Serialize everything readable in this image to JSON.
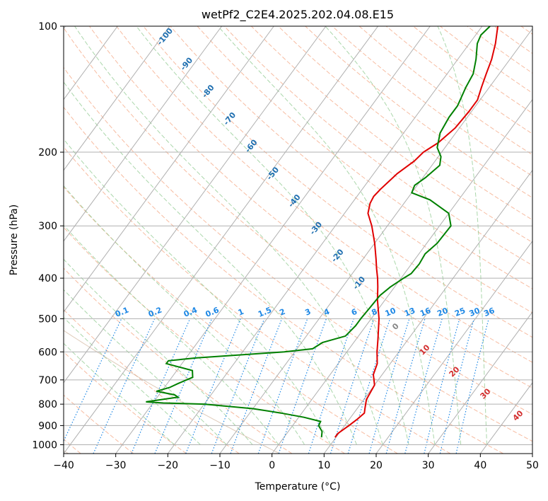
{
  "chart_data": {
    "type": "line",
    "subtype": "skew-T log-P diagram",
    "title": "wetPf2_C2E4.2025.202.04.08.E15",
    "xlabel": "Temperature (°C)",
    "ylabel": "Pressure (hPa)",
    "xlim": [
      -40,
      50
    ],
    "ylim": [
      1050,
      100
    ],
    "y_scale": "log",
    "x_ticks": [
      -40,
      -30,
      -20,
      -10,
      0,
      10,
      20,
      30,
      40,
      50
    ],
    "x_tick_labels": [
      "−40",
      "−30",
      "−20",
      "−10",
      "0",
      "10",
      "20",
      "30",
      "40",
      "50"
    ],
    "y_ticks": [
      1000,
      900,
      800,
      700,
      600,
      500,
      400,
      300,
      200,
      100
    ],
    "y_tick_labels": [
      "1000",
      "900",
      "800",
      "700",
      "600",
      "500",
      "400",
      "300",
      "200",
      "100"
    ],
    "grid": true,
    "series": [
      {
        "color": "#e00000",
        "role": "temperature",
        "points": [
          [
            960,
            9.8
          ],
          [
            940,
            9.8
          ],
          [
            900,
            10.8
          ],
          [
            870,
            11.5
          ],
          [
            840,
            12
          ],
          [
            820,
            11.5
          ],
          [
            780,
            10.5
          ],
          [
            720,
            10
          ],
          [
            680,
            8.3
          ],
          [
            640,
            7.5
          ],
          [
            600,
            5.8
          ],
          [
            560,
            4.2
          ],
          [
            500,
            1.5
          ],
          [
            450,
            -1.5
          ],
          [
            420,
            -3.2
          ],
          [
            400,
            -4.5
          ],
          [
            380,
            -6
          ],
          [
            360,
            -7.5
          ],
          [
            330,
            -10
          ],
          [
            300,
            -13
          ],
          [
            280,
            -15.5
          ],
          [
            265,
            -16.5
          ],
          [
            255,
            -16.8
          ],
          [
            245,
            -16.5
          ],
          [
            235,
            -16
          ],
          [
            225,
            -15.5
          ],
          [
            210,
            -14
          ],
          [
            200,
            -13.5
          ],
          [
            190,
            -12
          ],
          [
            175,
            -10.8
          ],
          [
            160,
            -10.5
          ],
          [
            150,
            -10.5
          ],
          [
            140,
            -11.5
          ],
          [
            130,
            -12.5
          ],
          [
            120,
            -13.5
          ],
          [
            110,
            -15
          ],
          [
            100,
            -17
          ]
        ]
      },
      {
        "color": "#008000",
        "role": "dewpoint",
        "points": [
          [
            960,
            7.2
          ],
          [
            930,
            6.5
          ],
          [
            900,
            5
          ],
          [
            880,
            4.8
          ],
          [
            860,
            1
          ],
          [
            840,
            -4
          ],
          [
            820,
            -10
          ],
          [
            800,
            -20
          ],
          [
            795,
            -28
          ],
          [
            790,
            -31.5
          ],
          [
            770,
            -26
          ],
          [
            760,
            -27
          ],
          [
            745,
            -31
          ],
          [
            730,
            -29
          ],
          [
            715,
            -28
          ],
          [
            690,
            -26
          ],
          [
            665,
            -27
          ],
          [
            640,
            -33
          ],
          [
            630,
            -33
          ],
          [
            620,
            -28
          ],
          [
            600,
            -12
          ],
          [
            590,
            -7
          ],
          [
            570,
            -6
          ],
          [
            550,
            -2.5
          ],
          [
            520,
            -2
          ],
          [
            500,
            -2
          ],
          [
            470,
            -1.8
          ],
          [
            440,
            -1.6
          ],
          [
            420,
            -0.8
          ],
          [
            400,
            0.5
          ],
          [
            390,
            1.3
          ],
          [
            370,
            1.5
          ],
          [
            350,
            1.2
          ],
          [
            330,
            2
          ],
          [
            300,
            2.2
          ],
          [
            280,
            0
          ],
          [
            260,
            -5.5
          ],
          [
            250,
            -10
          ],
          [
            240,
            -10.5
          ],
          [
            230,
            -9.5
          ],
          [
            215,
            -8.5
          ],
          [
            205,
            -9.5
          ],
          [
            195,
            -11.5
          ],
          [
            180,
            -13
          ],
          [
            165,
            -13.5
          ],
          [
            155,
            -13.5
          ],
          [
            140,
            -14.5
          ],
          [
            130,
            -15
          ],
          [
            120,
            -16.5
          ],
          [
            110,
            -18.5
          ],
          [
            105,
            -19
          ],
          [
            100,
            -18.5
          ]
        ]
      }
    ],
    "dry_adiabat_labels": [
      "0",
      "10",
      "20",
      "30",
      "40"
    ],
    "moist_adiabat_labels": [
      "-100",
      "-90",
      "-80",
      "-70",
      "-60",
      "-50",
      "-40",
      "-30",
      "-20",
      "-10"
    ],
    "mixing_ratio_labels": [
      "0.1",
      "0.2",
      "0.4",
      "0.6",
      "1",
      "1.5",
      "2",
      "3",
      "4",
      "6",
      "8",
      "10",
      "13",
      "16",
      "20",
      "25",
      "30",
      "36"
    ],
    "colors": {
      "isotherm": "#b0b0b0",
      "isobar": "#b0b0b0",
      "dry_adiabat": "#f4a582",
      "moist_adiabat": "#8fc98f",
      "mixing_ratio": "#1e88e5",
      "other_lines": "#c9a98c"
    }
  }
}
